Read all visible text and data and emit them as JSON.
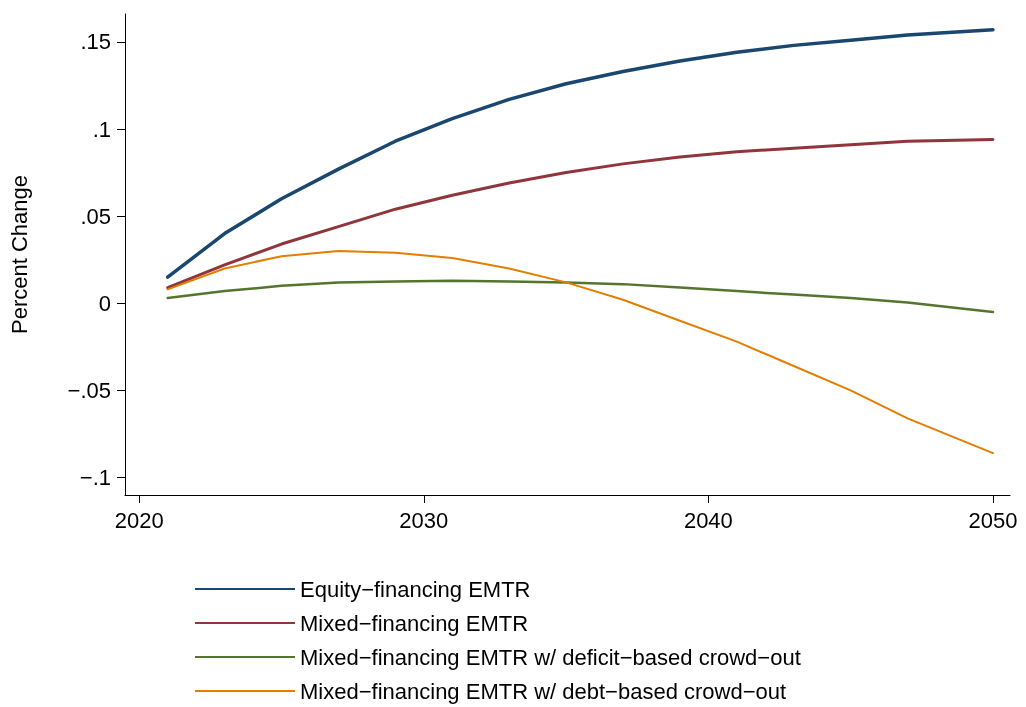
{
  "chart_data": {
    "type": "line",
    "ylabel": "Percent Change",
    "x": [
      2021,
      2023,
      2025,
      2027,
      2029,
      2031,
      2033,
      2035,
      2037,
      2039,
      2041,
      2043,
      2045,
      2047,
      2050
    ],
    "series": [
      {
        "name": "Equity−financing EMTR",
        "color": "#1a476f",
        "values": [
          0.015,
          0.04,
          0.06,
          0.077,
          0.093,
          0.106,
          0.117,
          0.126,
          0.133,
          0.139,
          0.144,
          0.148,
          0.151,
          0.154,
          0.157
        ]
      },
      {
        "name": "Mixed−financing EMTR",
        "color": "#90353b",
        "values": [
          0.009,
          0.022,
          0.034,
          0.044,
          0.054,
          0.062,
          0.069,
          0.075,
          0.08,
          0.084,
          0.087,
          0.089,
          0.091,
          0.093,
          0.094
        ]
      },
      {
        "name": "Mixed−financing EMTR w/ deficit−based crowd−out",
        "color": "#55752f",
        "values": [
          0.003,
          0.007,
          0.01,
          0.012,
          0.0125,
          0.013,
          0.0125,
          0.012,
          0.011,
          0.009,
          0.007,
          0.005,
          0.003,
          0.0005,
          -0.005
        ]
      },
      {
        "name": "Mixed−financing EMTR w/ debt−based crowd−out",
        "color": "#e37e00",
        "values": [
          0.008,
          0.02,
          0.027,
          0.03,
          0.029,
          0.026,
          0.02,
          0.012,
          0.002,
          -0.01,
          -0.022,
          -0.036,
          -0.05,
          -0.066,
          -0.086
        ]
      }
    ],
    "xlim": [
      2019.5,
      2050.6
    ],
    "xticks": [
      2020,
      2030,
      2040,
      2050
    ],
    "ylim": [
      -0.11,
      0.166
    ],
    "yticks": [
      {
        "value": -0.1,
        "label": "−.1"
      },
      {
        "value": -0.05,
        "label": "−.05"
      },
      {
        "value": 0,
        "label": "0"
      },
      {
        "value": 0.05,
        "label": ".05"
      },
      {
        "value": 0.1,
        "label": ".1"
      },
      {
        "value": 0.15,
        "label": ".15"
      }
    ],
    "grid": false,
    "legend": "bottom",
    "marker": "none",
    "line_style": "solid"
  }
}
